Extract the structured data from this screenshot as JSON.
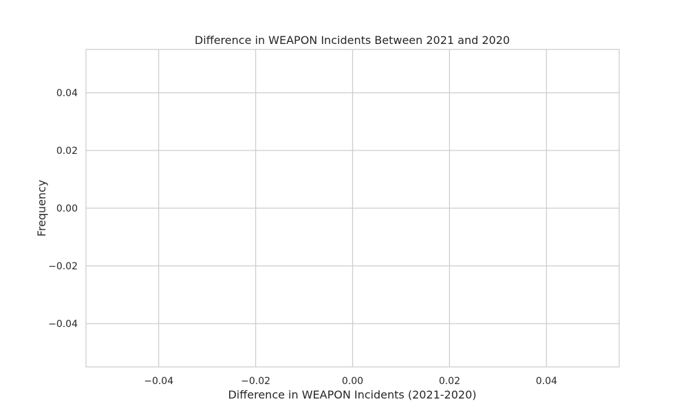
{
  "chart_data": {
    "type": "bar",
    "title": "Difference in WEAPON Incidents Between 2021 and 2020",
    "xlabel": "Difference in WEAPON Incidents (2021-2020)",
    "ylabel": "Frequency",
    "xlim": [
      -0.055,
      0.055
    ],
    "ylim": [
      -0.055,
      0.055
    ],
    "x_ticks": [
      -0.04,
      -0.02,
      0.0,
      0.02,
      0.04
    ],
    "x_tick_labels": [
      "−0.04",
      "−0.02",
      "0.00",
      "0.02",
      "0.04"
    ],
    "y_ticks": [
      0.04,
      0.02,
      0.0,
      -0.02,
      -0.04
    ],
    "y_tick_labels": [
      "0.04",
      "0.02",
      "0.00",
      "−0.02",
      "−0.04"
    ],
    "values": [],
    "grid": true,
    "colors": {
      "background": "#ffffff",
      "grid": "#cccccc",
      "spine": "#cccccc",
      "text": "#262626"
    }
  }
}
